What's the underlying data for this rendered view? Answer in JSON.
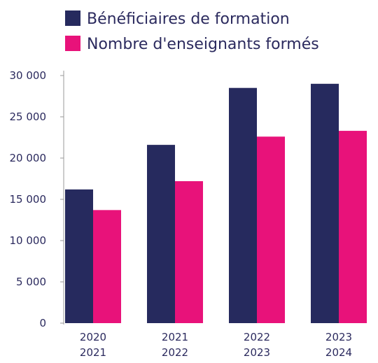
{
  "chart_data": {
    "type": "bar",
    "categories": [
      [
        "2020",
        "2021"
      ],
      [
        "2021",
        "2022"
      ],
      [
        "2022",
        "2023"
      ],
      [
        "2023",
        "2024"
      ]
    ],
    "series": [
      {
        "name": "Bénéficiaires de formation",
        "color": "#262a5e",
        "values": [
          16200,
          21600,
          28500,
          29000
        ]
      },
      {
        "name": "Nombre d'enseignants formés",
        "color": "#e8127a",
        "values": [
          13700,
          17200,
          22600,
          23300
        ]
      }
    ],
    "yticks": [
      "0",
      "5 000",
      "10 000",
      "15 000",
      "20 000",
      "25 000",
      "30 000"
    ],
    "ylim": [
      0,
      30000
    ],
    "legend_position": "top-left",
    "grid": false
  }
}
